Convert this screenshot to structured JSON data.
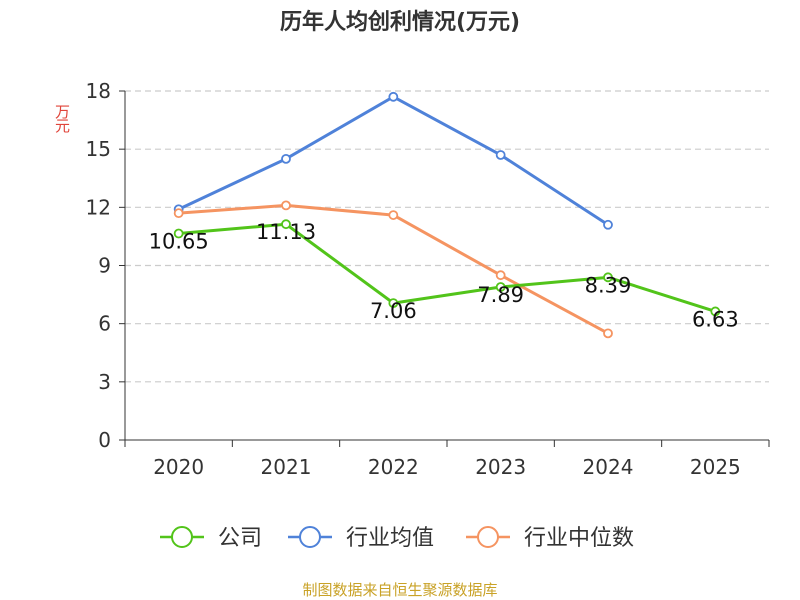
{
  "chart_data": {
    "type": "line",
    "title": "历年人均创利情况(万元)",
    "ylabel": "万元",
    "categories": [
      "2020",
      "2021",
      "2022",
      "2023",
      "2024",
      "2025"
    ],
    "ylim": [
      0,
      18
    ],
    "yticks": [
      0,
      3,
      6,
      9,
      12,
      15,
      18
    ],
    "grid": true,
    "legend_position": "bottom",
    "series": [
      {
        "name": "公司",
        "color": "#52c41a",
        "values": [
          10.65,
          11.13,
          7.06,
          7.89,
          8.39,
          6.63
        ],
        "labels": [
          "10.65",
          "11.13",
          "7.06",
          "7.89",
          "8.39",
          "6.63"
        ]
      },
      {
        "name": "行业均值",
        "color": "#4f82d9",
        "values": [
          11.9,
          14.5,
          17.7,
          14.7,
          11.1,
          null
        ]
      },
      {
        "name": "行业中位数",
        "color": "#f59461",
        "values": [
          11.7,
          12.1,
          11.6,
          8.5,
          5.5,
          null
        ]
      }
    ]
  },
  "source_text": "制图数据来自恒生聚源数据库",
  "colors": {
    "title": "#333333",
    "unit": "#e0443a",
    "source": "#c9a227",
    "axis": "#333333",
    "grid": "#cccccc"
  }
}
